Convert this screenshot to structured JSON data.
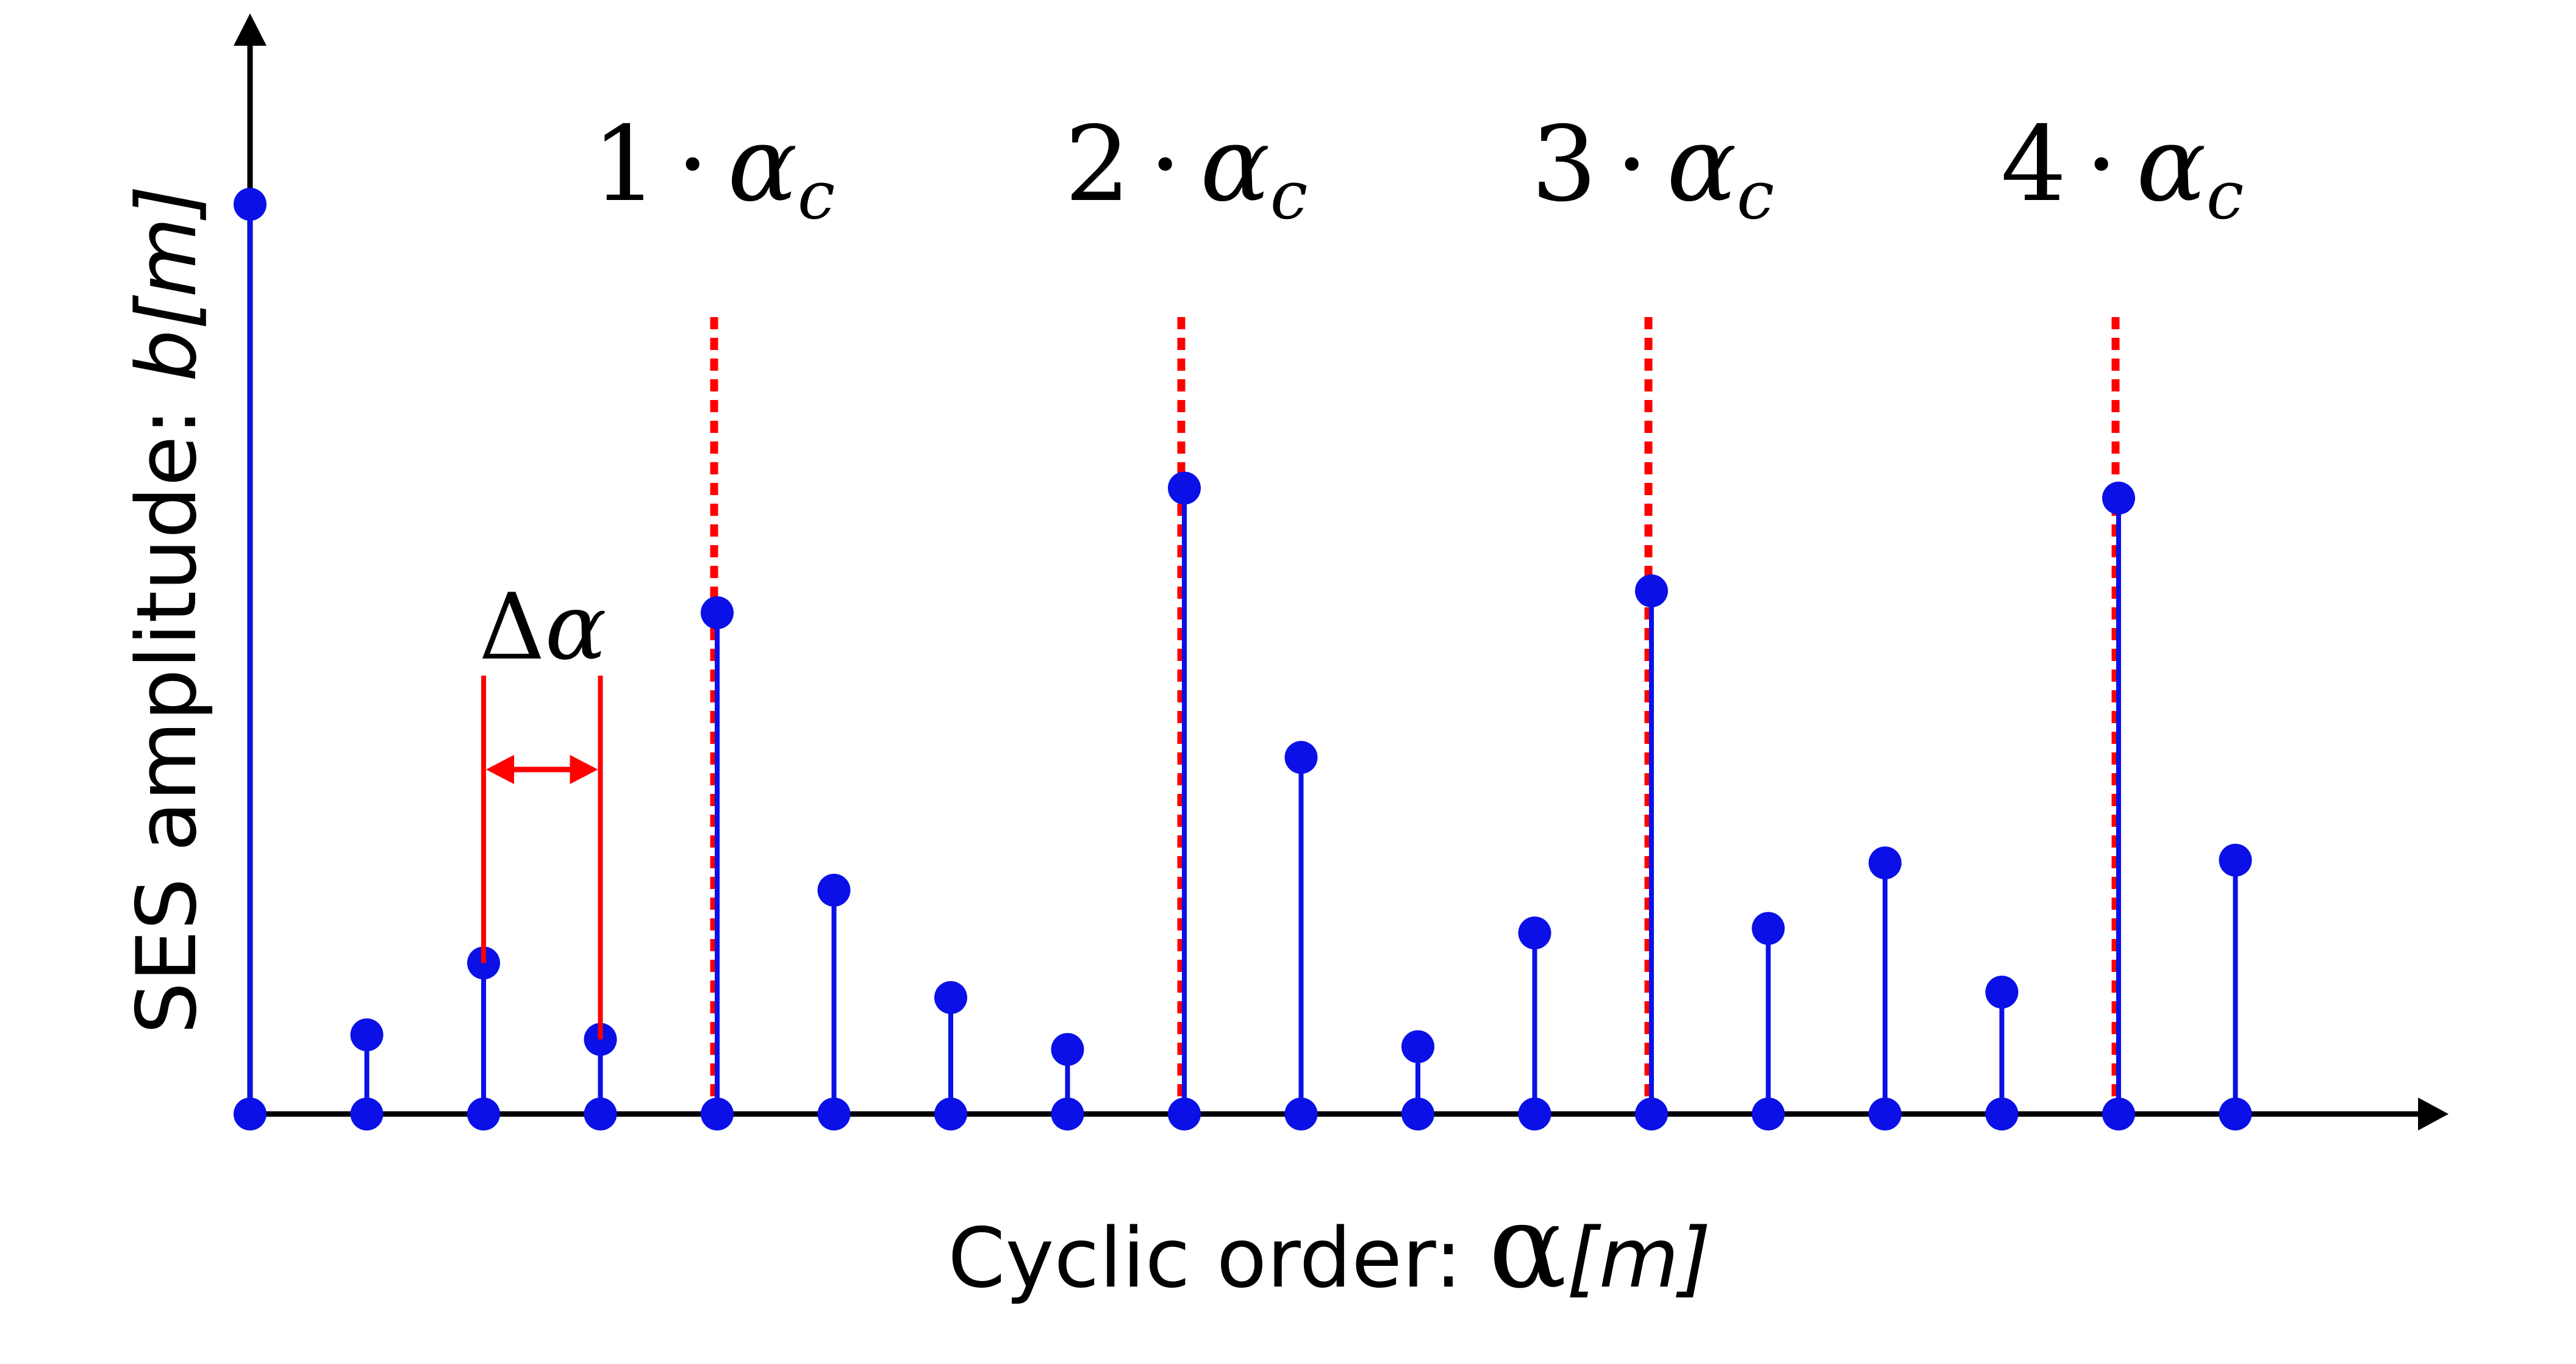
{
  "axes": {
    "x_label": {
      "prefix": "Cyclic order: ",
      "symbol": "α",
      "suffix": "[m]"
    },
    "y_label": {
      "prefix": "SES amplitude: ",
      "suffix": "b[m]"
    }
  },
  "harmonic_labels": [
    {
      "multiplier": "1",
      "dot": "·",
      "symbol": "α",
      "subscript": "c"
    },
    {
      "multiplier": "2",
      "dot": "·",
      "symbol": "α",
      "subscript": "c"
    },
    {
      "multiplier": "3",
      "dot": "·",
      "symbol": "α",
      "subscript": "c"
    },
    {
      "multiplier": "4",
      "dot": "·",
      "symbol": "α",
      "subscript": "c"
    }
  ],
  "spacing_label": {
    "delta": "Δ",
    "symbol": "α"
  },
  "stems": {
    "amplitudes": [
      1.0,
      0.087,
      0.166,
      0.082,
      0.551,
      0.246,
      0.128,
      0.071,
      0.688,
      0.392,
      0.074,
      0.199,
      0.575,
      0.204,
      0.276,
      0.134,
      0.677,
      0.279
    ],
    "harmonic_indices": [
      4,
      8,
      12,
      16
    ],
    "spacing_indices": [
      2,
      3
    ]
  },
  "colors": {
    "stem": "#0a10e6",
    "harmonic_marker": "#ff0000",
    "spacing_marker": "#ff0000",
    "axis": "#000000",
    "text": "#000000"
  }
}
